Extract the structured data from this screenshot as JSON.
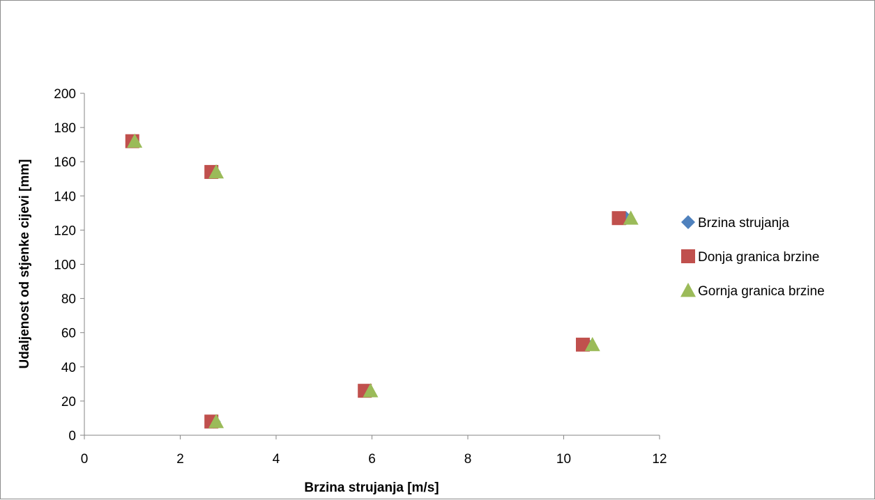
{
  "chart_data": {
    "type": "scatter",
    "title": "",
    "xlabel": "Brzina strujanja [m/s]",
    "ylabel": "Udaljenost od stjenke cijevi [mm]",
    "xlim": [
      0,
      12
    ],
    "ylim": [
      0,
      200
    ],
    "x_ticks": [
      "0",
      "2",
      "4",
      "6",
      "8",
      "10",
      "12"
    ],
    "y_ticks": [
      "0",
      "20",
      "40",
      "60",
      "80",
      "100",
      "120",
      "140",
      "160",
      "180",
      "200"
    ],
    "grid": false,
    "legend_position": "right",
    "series": [
      {
        "name": "Brzina strujanja",
        "marker": "diamond",
        "color": "#4f81bd",
        "points": [
          {
            "x": 1.0,
            "y": 172
          },
          {
            "x": 2.7,
            "y": 154
          },
          {
            "x": 11.3,
            "y": 127
          },
          {
            "x": 10.5,
            "y": 53
          },
          {
            "x": 5.9,
            "y": 26
          },
          {
            "x": 2.7,
            "y": 8
          }
        ]
      },
      {
        "name": "Donja granica brzine",
        "marker": "square",
        "color": "#c0504d",
        "points": [
          {
            "x": 1.0,
            "y": 172
          },
          {
            "x": 2.65,
            "y": 154
          },
          {
            "x": 11.15,
            "y": 127
          },
          {
            "x": 10.4,
            "y": 53
          },
          {
            "x": 5.85,
            "y": 26
          },
          {
            "x": 2.65,
            "y": 8
          }
        ]
      },
      {
        "name": "Gornja granica brzine",
        "marker": "triangle",
        "color": "#9bbb59",
        "points": [
          {
            "x": 1.05,
            "y": 172
          },
          {
            "x": 2.75,
            "y": 154
          },
          {
            "x": 11.4,
            "y": 127
          },
          {
            "x": 10.6,
            "y": 53
          },
          {
            "x": 5.97,
            "y": 26
          },
          {
            "x": 2.75,
            "y": 8
          }
        ]
      }
    ]
  }
}
